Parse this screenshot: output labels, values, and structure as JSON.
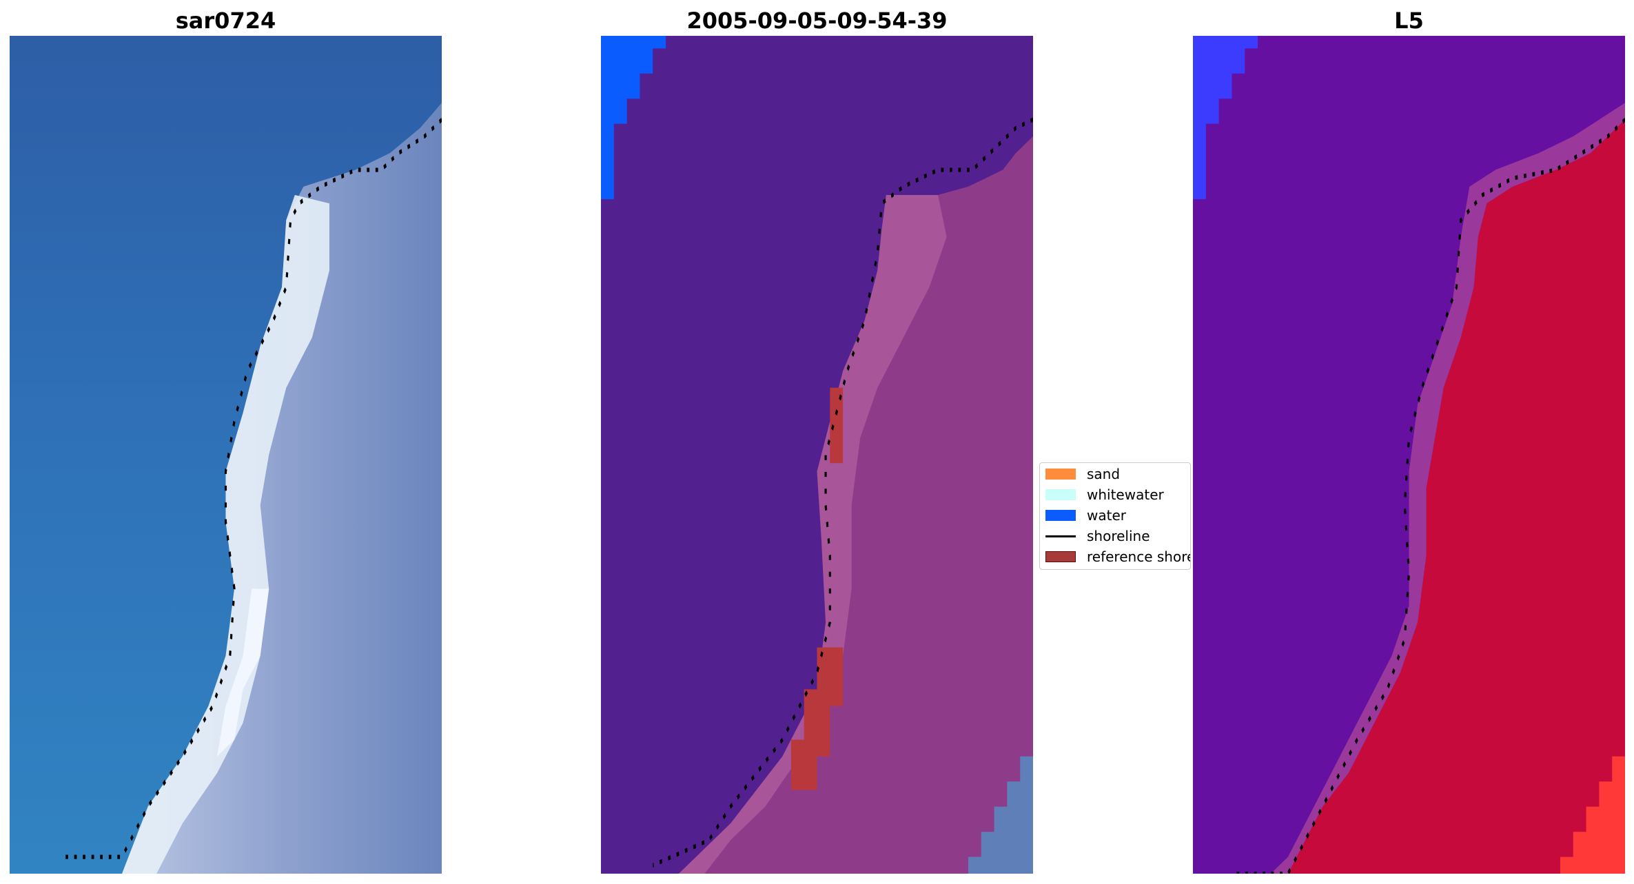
{
  "panels": [
    {
      "title": "sar0724",
      "kind": "rgb"
    },
    {
      "title": "2005-09-05-09-54-39",
      "kind": "classified"
    },
    {
      "title": "L5",
      "kind": "index"
    }
  ],
  "legend": {
    "items": [
      {
        "label": "sand",
        "type": "patch",
        "color": "#ff8c3a",
        "edge": "#ff8c3a"
      },
      {
        "label": "whitewater",
        "type": "patch",
        "color": "#c8fff8",
        "edge": "#c8fff8"
      },
      {
        "label": "water",
        "type": "patch",
        "color": "#0a5cff",
        "edge": "#0a5cff"
      },
      {
        "label": "shoreline",
        "type": "line",
        "color": "#000000"
      },
      {
        "label": "reference shoreline buffer",
        "type": "patch",
        "color": "#a83a3a",
        "edge": "#5a0f0f"
      }
    ]
  },
  "colors": {
    "water_sar": "#2f6fb6",
    "water_class": "#53218f",
    "water_index": "#6510a0",
    "land_class": "#8e3c8a",
    "land_index": "#c60a3c",
    "whitewater_sar": "#e8f2f8",
    "water_blue": "#0a5cff",
    "reference_buffer": "#b8383c",
    "index_bright_red": "#ff3838"
  }
}
